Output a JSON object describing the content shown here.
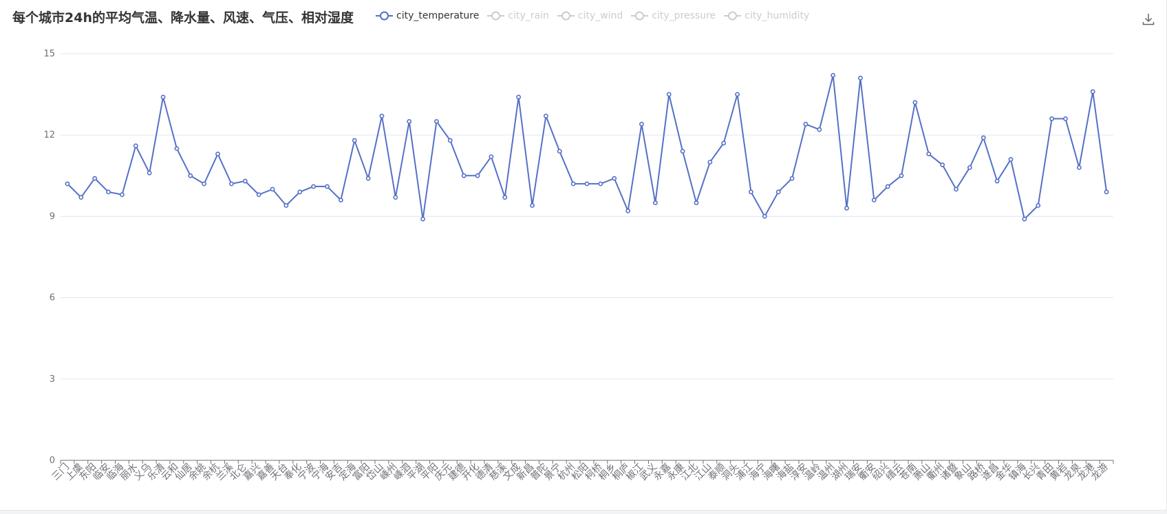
{
  "colors": {
    "series": "#5470c6",
    "inactive": "#cccccc",
    "grid": "#e0e6f1",
    "axis": "#6e7079"
  },
  "toolbox": {
    "icon": "download-icon"
  },
  "chart_data": {
    "type": "line",
    "title": "每个城市24h的平均气温、降水量、风速、气压、相对湿度",
    "legend": [
      {
        "name": "city_temperature",
        "active": true
      },
      {
        "name": "city_rain",
        "active": false
      },
      {
        "name": "city_wind",
        "active": false
      },
      {
        "name": "city_pressure",
        "active": false
      },
      {
        "name": "city_humidity",
        "active": false
      }
    ],
    "ylim": [
      0,
      15
    ],
    "yticks": [
      0,
      3,
      6,
      9,
      12,
      15
    ],
    "grid": true,
    "categories": [
      "三门",
      "上虞",
      "东阳",
      "临安",
      "临海",
      "丽水",
      "义乌",
      "乐清",
      "云和",
      "仙居",
      "余姚",
      "余杭",
      "兰溪",
      "北仑",
      "嘉兴",
      "嘉善",
      "天台",
      "奉化",
      "宁波",
      "宁海",
      "安吉",
      "定海",
      "富阳",
      "岱山",
      "嵊州",
      "嵊泗",
      "平湖",
      "平阳",
      "庆元",
      "建德",
      "开化",
      "德清",
      "慈溪",
      "文成",
      "新昌",
      "普陀",
      "景宁",
      "杭州",
      "松阳",
      "柯桥",
      "桐乡",
      "桐庐",
      "椒江",
      "武义",
      "永嘉",
      "永康",
      "江北",
      "江山",
      "泰顺",
      "洞头",
      "浦江",
      "海宁",
      "海曙",
      "海盐",
      "淳安",
      "温岭",
      "温州",
      "湖州",
      "瑞安",
      "衢安",
      "绍兴",
      "缙云",
      "苍南",
      "萧山",
      "衢州",
      "诸暨",
      "象山",
      "路桥",
      "遂昌",
      "金华",
      "镇海",
      "长兴",
      "青田",
      "黄岩",
      "龙泉",
      "龙港",
      "龙游"
    ],
    "series": [
      {
        "name": "city_temperature",
        "values": [
          10.2,
          9.7,
          10.4,
          9.9,
          9.8,
          11.6,
          10.6,
          13.4,
          11.5,
          10.5,
          10.2,
          11.3,
          10.2,
          10.3,
          9.8,
          10.0,
          9.4,
          9.9,
          10.1,
          10.1,
          9.6,
          11.8,
          10.4,
          12.7,
          9.7,
          12.5,
          8.9,
          12.5,
          11.8,
          10.5,
          10.5,
          11.2,
          9.7,
          13.4,
          9.4,
          12.7,
          11.4,
          10.2,
          10.2,
          10.2,
          10.4,
          9.2,
          12.4,
          9.5,
          13.5,
          11.4,
          9.5,
          11.0,
          11.7,
          13.5,
          9.9,
          9.0,
          9.9,
          10.4,
          12.4,
          12.2,
          14.2,
          9.3,
          14.1,
          9.6,
          10.1,
          10.5,
          13.2,
          11.3,
          10.9,
          10.0,
          10.8,
          11.9,
          10.3,
          11.1,
          8.9,
          9.4,
          12.6,
          12.6,
          10.8,
          13.6,
          9.9
        ]
      }
    ]
  }
}
